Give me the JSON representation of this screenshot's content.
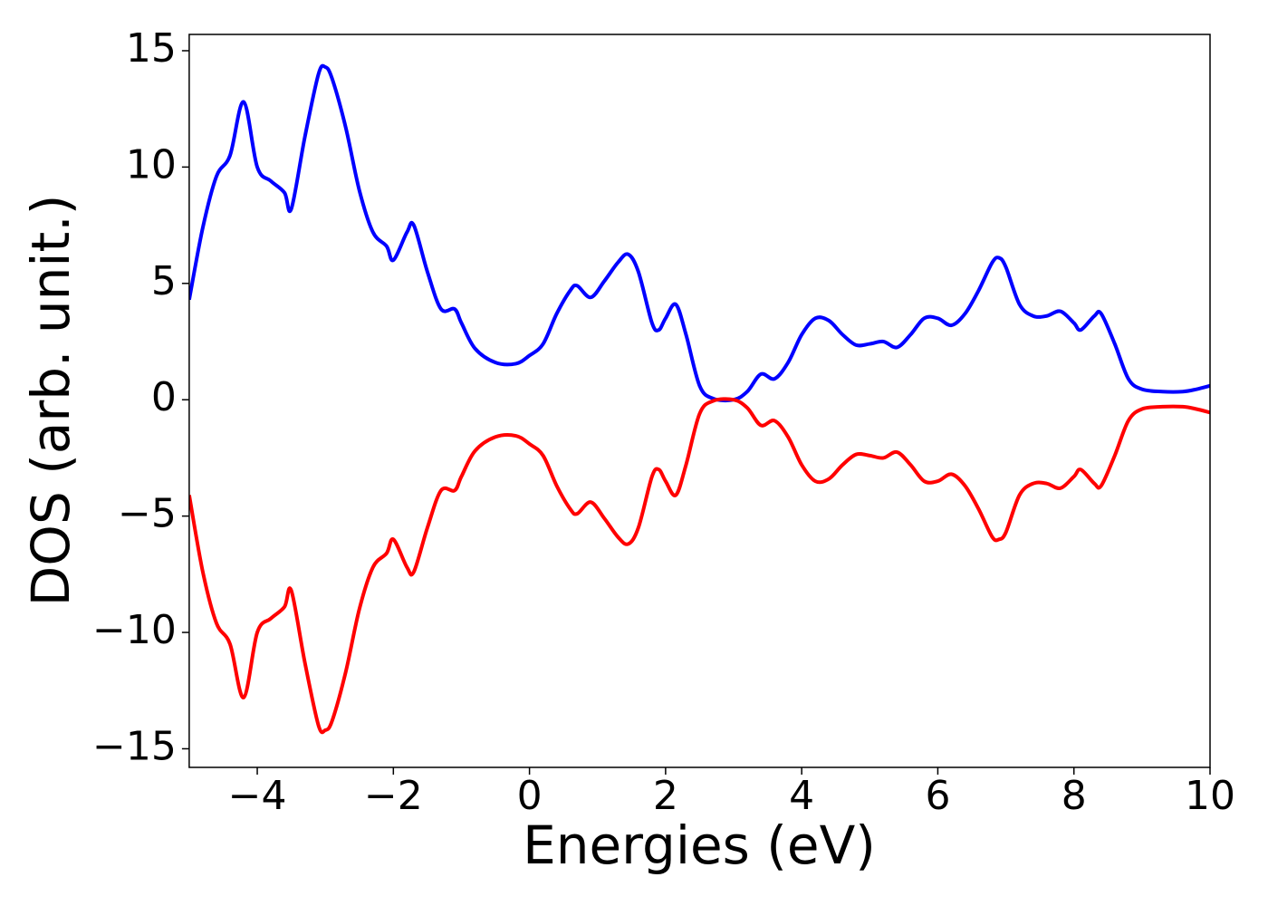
{
  "chart_data": {
    "type": "line",
    "xlabel": "Energies (eV)",
    "ylabel": "DOS (arb. unit.)",
    "x": [
      -5,
      -4.8,
      -4.6,
      -4.4,
      -4.2,
      -4,
      -3.8,
      -3.6,
      -3.5,
      -3.3,
      -3.1,
      -3,
      -2.9,
      -2.7,
      -2.5,
      -2.3,
      -2.1,
      -2,
      -1.8,
      -1.7,
      -1.5,
      -1.3,
      -1.1,
      -1,
      -0.8,
      -0.5,
      -0.2,
      0,
      0.2,
      0.4,
      0.6,
      0.7,
      0.9,
      1.1,
      1.3,
      1.45,
      1.6,
      1.8,
      1.9,
      2,
      2.15,
      2.3,
      2.5,
      2.7,
      3,
      3.2,
      3.4,
      3.6,
      3.8,
      4,
      4.2,
      4.4,
      4.6,
      4.8,
      5,
      5.2,
      5.4,
      5.6,
      5.8,
      6,
      6.2,
      6.4,
      6.6,
      6.8,
      6.9,
      7,
      7.2,
      7.4,
      7.6,
      7.8,
      8,
      8.1,
      8.3,
      8.4,
      8.6,
      8.8,
      9,
      9.3,
      9.6,
      9.8,
      10
    ],
    "series": [
      {
        "color": "#0000ff",
        "values": [
          4.3,
          7.4,
          9.6,
          10.5,
          12.8,
          10.0,
          9.4,
          8.9,
          8.2,
          11.3,
          14.0,
          14.3,
          13.8,
          11.7,
          9.0,
          7.2,
          6.6,
          6.0,
          7.2,
          7.5,
          5.5,
          3.9,
          3.9,
          3.3,
          2.2,
          1.6,
          1.55,
          1.9,
          2.4,
          3.7,
          4.7,
          4.9,
          4.4,
          5.1,
          5.9,
          6.25,
          5.5,
          3.3,
          3.0,
          3.5,
          4.1,
          2.8,
          0.6,
          0.05,
          0,
          0.35,
          1.1,
          0.9,
          1.6,
          2.8,
          3.5,
          3.4,
          2.8,
          2.35,
          2.4,
          2.5,
          2.25,
          2.8,
          3.5,
          3.5,
          3.2,
          3.7,
          4.7,
          5.9,
          6.1,
          5.7,
          4.1,
          3.6,
          3.6,
          3.8,
          3.3,
          3.0,
          3.6,
          3.7,
          2.4,
          0.9,
          0.45,
          0.35,
          0.35,
          0.45,
          0.6
        ]
      },
      {
        "color": "#ff0000",
        "values": [
          -4.1,
          -7.4,
          -9.6,
          -10.5,
          -12.8,
          -10.0,
          -9.4,
          -8.9,
          -8.2,
          -11.3,
          -14.0,
          -14.2,
          -13.8,
          -11.7,
          -9.0,
          -7.2,
          -6.6,
          -6.0,
          -7.2,
          -7.4,
          -5.5,
          -3.9,
          -3.9,
          -3.3,
          -2.2,
          -1.6,
          -1.55,
          -1.9,
          -2.4,
          -3.7,
          -4.7,
          -4.9,
          -4.4,
          -5.1,
          -5.9,
          -6.2,
          -5.5,
          -3.3,
          -3.0,
          -3.5,
          -4.1,
          -2.8,
          -0.6,
          -0.05,
          0,
          -0.35,
          -1.1,
          -0.9,
          -1.6,
          -2.8,
          -3.5,
          -3.4,
          -2.8,
          -2.35,
          -2.4,
          -2.5,
          -2.25,
          -2.8,
          -3.5,
          -3.5,
          -3.2,
          -3.7,
          -4.7,
          -5.9,
          -6.0,
          -5.7,
          -4.1,
          -3.6,
          -3.6,
          -3.8,
          -3.3,
          -3.0,
          -3.6,
          -3.7,
          -2.4,
          -0.9,
          -0.4,
          -0.3,
          -0.3,
          -0.4,
          -0.55
        ]
      }
    ],
    "xlim": [
      -5,
      10
    ],
    "ylim": [
      -15.8,
      15.7
    ],
    "xticks": [
      {
        "value": -4,
        "label": "−4"
      },
      {
        "value": -2,
        "label": "−2"
      },
      0,
      2,
      4,
      6,
      8,
      10
    ],
    "yticks": [
      {
        "value": -15,
        "label": "−15"
      },
      {
        "value": -10,
        "label": "−10"
      },
      {
        "value": -5,
        "label": "−5"
      },
      0,
      5,
      10,
      15
    ],
    "grid": false
  }
}
